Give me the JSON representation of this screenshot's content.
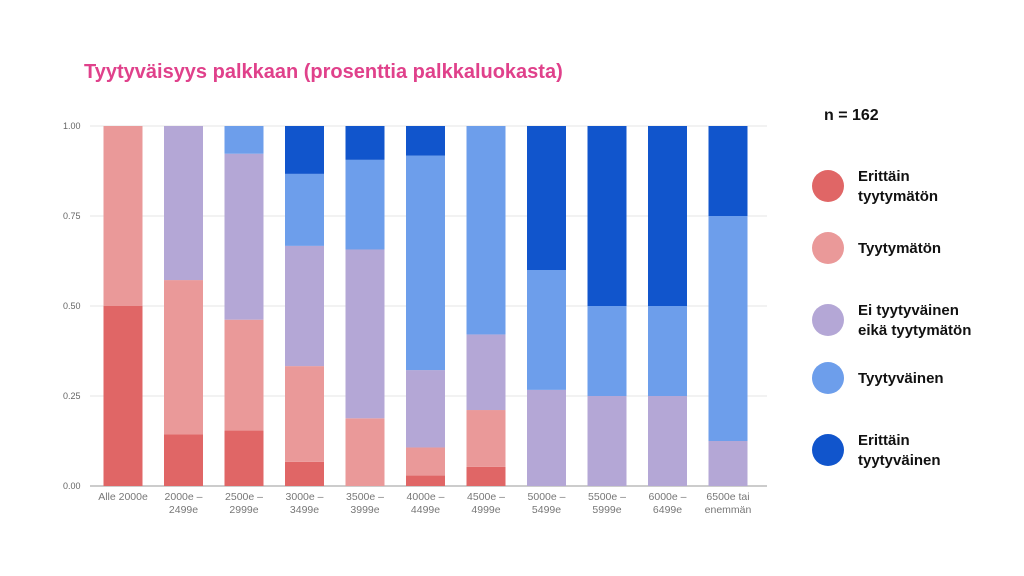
{
  "title": "Tyytyväisyys palkkaan (prosenttia palkkaluokasta)",
  "n_label": "n = 162",
  "colors": {
    "erittain_tyytymaton": "#e06666",
    "tyytymaton": "#ea9999",
    "ei_kumpikaan": "#b4a7d6",
    "tyytyvainen": "#6d9eeb",
    "erittain_tyytyvainen": "#1155cc"
  },
  "legend": [
    {
      "lines": [
        "Erittäin",
        "tyytymätön"
      ],
      "color": "#e06666"
    },
    {
      "lines": [
        "Tyytymätön"
      ],
      "color": "#ea9999"
    },
    {
      "lines": [
        "Ei tyytyväinen",
        "eikä tyytymätön"
      ],
      "color": "#b4a7d6"
    },
    {
      "lines": [
        "Tyytyväinen"
      ],
      "color": "#6d9eeb"
    },
    {
      "lines": [
        "Erittäin",
        "tyytyväinen"
      ],
      "color": "#1155cc"
    }
  ],
  "chart_data": {
    "type": "bar",
    "stacked": true,
    "title": "Tyytyväisyys palkkaan (prosenttia palkkaluokasta)",
    "categories": [
      [
        "Alle 2000e"
      ],
      [
        "2000e –",
        "2499e"
      ],
      [
        "2500e –",
        "2999e"
      ],
      [
        "3000e –",
        "3499e"
      ],
      [
        "3500e –",
        "3999e"
      ],
      [
        "4000e –",
        "4499e"
      ],
      [
        "4500e –",
        "4999e"
      ],
      [
        "5000e –",
        "5499e"
      ],
      [
        "5500e –",
        "5999e"
      ],
      [
        "6000e –",
        "6499e"
      ],
      [
        "6500e tai",
        "enemmän"
      ]
    ],
    "series": [
      {
        "name": "Erittäin tyytymätön",
        "color": "#e06666",
        "values": [
          0.5,
          0.143,
          0.154,
          0.067,
          0.0,
          0.029,
          0.053,
          0.0,
          0.0,
          0.0,
          0.0
        ]
      },
      {
        "name": "Tyytymätön",
        "color": "#ea9999",
        "values": [
          0.5,
          0.429,
          0.308,
          0.266,
          0.188,
          0.078,
          0.158,
          0.0,
          0.0,
          0.0,
          0.0
        ]
      },
      {
        "name": "Ei tyytyväinen eikä tyytymätön",
        "color": "#b4a7d6",
        "values": [
          0.0,
          0.428,
          0.461,
          0.334,
          0.469,
          0.215,
          0.21,
          0.267,
          0.25,
          0.25,
          0.125
        ]
      },
      {
        "name": "Tyytyväinen",
        "color": "#6d9eeb",
        "values": [
          0.0,
          0.0,
          0.077,
          0.2,
          0.249,
          0.596,
          0.579,
          0.333,
          0.25,
          0.25,
          0.625
        ]
      },
      {
        "name": "Erittäin tyytyväinen",
        "color": "#1155cc",
        "values": [
          0.0,
          0.0,
          0.0,
          0.133,
          0.094,
          0.082,
          0.0,
          0.4,
          0.5,
          0.5,
          0.25
        ]
      }
    ],
    "yticks": [
      "0.00",
      "0.25",
      "0.50",
      "0.75",
      "1.00"
    ],
    "ylim": [
      0,
      1
    ],
    "grid": true,
    "legend_position": "right"
  }
}
